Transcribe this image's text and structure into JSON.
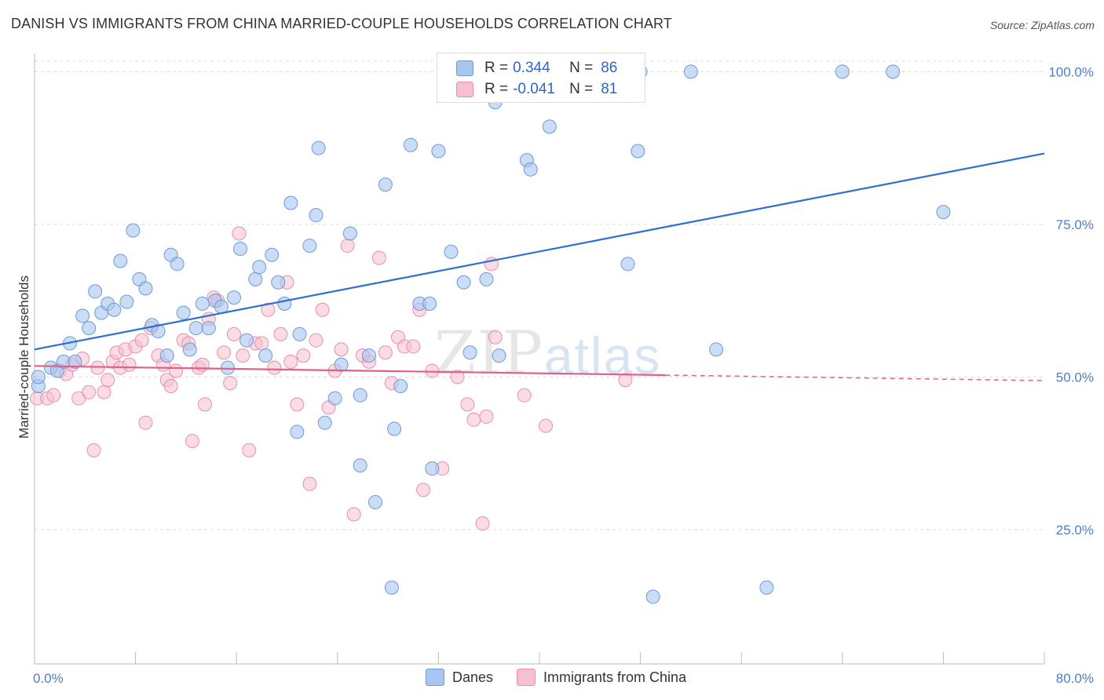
{
  "header": {
    "title": "DANISH VS IMMIGRANTS FROM CHINA MARRIED-COUPLE HOUSEHOLDS CORRELATION CHART",
    "source": "Source: ZipAtlas.com"
  },
  "watermark": {
    "zip": "ZIP",
    "atlas": "atlas"
  },
  "legend": {
    "rows": [
      {
        "r_label": "R =",
        "r_value": "0.344",
        "n_label": "N =",
        "n_value": "86",
        "color": "#a9c6f0"
      },
      {
        "r_label": "R =",
        "r_value": "-0.041",
        "n_label": "N =",
        "n_value": "81",
        "color": "#f6b8cb"
      }
    ]
  },
  "bottom_legend": {
    "danes": "Danes",
    "china": "Immigrants from China"
  },
  "colors": {
    "danes_fill": "#a9c6f0",
    "danes_stroke": "#6d9ad8",
    "danes_line": "#2f6fd0",
    "china_fill": "#f6c0d0",
    "china_stroke": "#ea8fac",
    "china_line": "#e0608a"
  },
  "chart_data": {
    "type": "scatter",
    "title": "DANISH VS IMMIGRANTS FROM CHINA MARRIED-COUPLE HOUSEHOLDS CORRELATION CHART",
    "xlabel": "",
    "ylabel": "Married-couple Households",
    "xlim": [
      0,
      80
    ],
    "ylim": [
      3,
      103
    ],
    "x_tick_labels": [
      "0.0%",
      "80.0%"
    ],
    "y_tick_labels": [
      "25.0%",
      "50.0%",
      "75.0%",
      "100.0%"
    ],
    "y_ticks": [
      25,
      50,
      75,
      100
    ],
    "grid": true,
    "legend_position": "top-center",
    "series": [
      {
        "name": "Danes",
        "R": 0.344,
        "N": 86,
        "trend": {
          "x": [
            0,
            80
          ],
          "y": [
            54.5,
            86.6
          ]
        },
        "points": [
          [
            0.3,
            48.5
          ],
          [
            1.3,
            51.5
          ],
          [
            1.8,
            51.0
          ],
          [
            2.3,
            52.5
          ],
          [
            2.8,
            55.5
          ],
          [
            3.2,
            52.5
          ],
          [
            3.8,
            60.0
          ],
          [
            4.3,
            58.0
          ],
          [
            4.8,
            64.0
          ],
          [
            5.3,
            60.5
          ],
          [
            5.8,
            62.0
          ],
          [
            6.3,
            61.0
          ],
          [
            6.8,
            69.0
          ],
          [
            7.3,
            62.3
          ],
          [
            7.8,
            74.0
          ],
          [
            8.3,
            66.0
          ],
          [
            8.8,
            64.5
          ],
          [
            9.3,
            58.5
          ],
          [
            9.8,
            57.5
          ],
          [
            10.5,
            53.5
          ],
          [
            10.8,
            70.0
          ],
          [
            11.3,
            68.5
          ],
          [
            11.8,
            60.5
          ],
          [
            12.3,
            54.5
          ],
          [
            12.8,
            58.0
          ],
          [
            13.3,
            62.0
          ],
          [
            13.8,
            58.0
          ],
          [
            14.3,
            62.5
          ],
          [
            14.8,
            61.5
          ],
          [
            15.3,
            51.5
          ],
          [
            15.8,
            63.0
          ],
          [
            16.3,
            71.0
          ],
          [
            16.8,
            56.0
          ],
          [
            17.5,
            66.0
          ],
          [
            17.8,
            68.0
          ],
          [
            18.3,
            53.5
          ],
          [
            18.8,
            70.0
          ],
          [
            19.3,
            65.5
          ],
          [
            19.8,
            62.0
          ],
          [
            20.3,
            78.5
          ],
          [
            21.0,
            57.0
          ],
          [
            21.8,
            71.5
          ],
          [
            22.3,
            76.5
          ],
          [
            22.5,
            87.5
          ],
          [
            23.0,
            42.5
          ],
          [
            23.8,
            46.5
          ],
          [
            24.3,
            52.0
          ],
          [
            25.0,
            73.5
          ],
          [
            25.8,
            47.0
          ],
          [
            25.8,
            35.5
          ],
          [
            26.5,
            53.5
          ],
          [
            27.0,
            29.5
          ],
          [
            27.8,
            81.5
          ],
          [
            28.5,
            41.5
          ],
          [
            29.0,
            48.5
          ],
          [
            29.8,
            88.0
          ],
          [
            30.5,
            62.0
          ],
          [
            31.3,
            62.0
          ],
          [
            31.5,
            35.0
          ],
          [
            32.0,
            87.0
          ],
          [
            33.0,
            70.5
          ],
          [
            34.0,
            65.5
          ],
          [
            34.5,
            54.0
          ],
          [
            35.8,
            66.0
          ],
          [
            36.5,
            95.0
          ],
          [
            36.8,
            53.5
          ],
          [
            38.0,
            100.0
          ],
          [
            39.0,
            85.5
          ],
          [
            39.3,
            84.0
          ],
          [
            40.8,
            91.0
          ],
          [
            43.0,
            100.0
          ],
          [
            44.0,
            100.0
          ],
          [
            47.0,
            68.5
          ],
          [
            47.8,
            87.0
          ],
          [
            48.0,
            100.0
          ],
          [
            49.0,
            14.0
          ],
          [
            52.0,
            100.0
          ],
          [
            54.0,
            54.5
          ],
          [
            58.0,
            15.5
          ],
          [
            64.0,
            100.0
          ],
          [
            68.0,
            100.0
          ],
          [
            72.0,
            77.0
          ],
          [
            20.8,
            41.0
          ],
          [
            28.3,
            15.5
          ],
          [
            37.5,
            100.0
          ],
          [
            0.3,
            50.0
          ]
        ]
      },
      {
        "name": "Immigrants from China",
        "R": -0.041,
        "N": 81,
        "trend_solid": {
          "x": [
            0,
            50
          ],
          "y": [
            51.8,
            50.3
          ]
        },
        "trend_dashed": {
          "x": [
            50,
            80
          ],
          "y": [
            50.3,
            49.4
          ]
        },
        "points": [
          [
            0.2,
            46.5
          ],
          [
            1.0,
            46.5
          ],
          [
            1.5,
            47.0
          ],
          [
            2.0,
            51.0
          ],
          [
            2.5,
            50.5
          ],
          [
            3.0,
            52.0
          ],
          [
            3.5,
            46.5
          ],
          [
            3.8,
            53.0
          ],
          [
            4.3,
            47.5
          ],
          [
            4.7,
            38.0
          ],
          [
            5.0,
            51.5
          ],
          [
            5.5,
            47.5
          ],
          [
            5.8,
            49.5
          ],
          [
            6.2,
            52.5
          ],
          [
            6.5,
            54.0
          ],
          [
            6.8,
            51.5
          ],
          [
            7.2,
            54.5
          ],
          [
            7.5,
            52.0
          ],
          [
            8.0,
            55.0
          ],
          [
            8.5,
            56.0
          ],
          [
            8.8,
            42.5
          ],
          [
            9.2,
            58.0
          ],
          [
            9.8,
            53.5
          ],
          [
            10.2,
            52.0
          ],
          [
            10.5,
            49.5
          ],
          [
            10.8,
            48.5
          ],
          [
            11.2,
            51.0
          ],
          [
            11.8,
            56.0
          ],
          [
            12.2,
            55.5
          ],
          [
            12.5,
            39.5
          ],
          [
            13.0,
            51.5
          ],
          [
            13.5,
            45.5
          ],
          [
            13.8,
            59.5
          ],
          [
            14.2,
            63.0
          ],
          [
            14.5,
            62.5
          ],
          [
            15.0,
            54.0
          ],
          [
            15.5,
            49.0
          ],
          [
            15.8,
            57.0
          ],
          [
            16.2,
            73.5
          ],
          [
            16.5,
            53.5
          ],
          [
            17.0,
            38.0
          ],
          [
            17.5,
            55.5
          ],
          [
            18.0,
            55.5
          ],
          [
            18.5,
            61.0
          ],
          [
            19.0,
            51.5
          ],
          [
            19.5,
            57.0
          ],
          [
            20.0,
            65.5
          ],
          [
            20.3,
            52.5
          ],
          [
            20.8,
            45.5
          ],
          [
            21.3,
            53.5
          ],
          [
            21.8,
            32.5
          ],
          [
            22.3,
            56.0
          ],
          [
            22.8,
            61.0
          ],
          [
            23.3,
            45.0
          ],
          [
            23.8,
            51.0
          ],
          [
            24.3,
            54.5
          ],
          [
            24.8,
            71.5
          ],
          [
            25.3,
            27.5
          ],
          [
            26.0,
            53.5
          ],
          [
            26.5,
            52.5
          ],
          [
            27.3,
            69.5
          ],
          [
            27.8,
            54.0
          ],
          [
            28.3,
            49.0
          ],
          [
            28.8,
            56.5
          ],
          [
            29.3,
            55.0
          ],
          [
            30.0,
            55.0
          ],
          [
            30.5,
            61.0
          ],
          [
            30.8,
            31.5
          ],
          [
            31.5,
            51.0
          ],
          [
            32.3,
            35.0
          ],
          [
            33.5,
            50.0
          ],
          [
            34.3,
            45.5
          ],
          [
            34.8,
            43.0
          ],
          [
            35.5,
            26.0
          ],
          [
            35.8,
            43.5
          ],
          [
            36.2,
            68.5
          ],
          [
            36.5,
            56.5
          ],
          [
            38.8,
            47.0
          ],
          [
            40.5,
            42.0
          ],
          [
            46.8,
            49.5
          ],
          [
            13.3,
            52.0
          ]
        ]
      }
    ]
  }
}
